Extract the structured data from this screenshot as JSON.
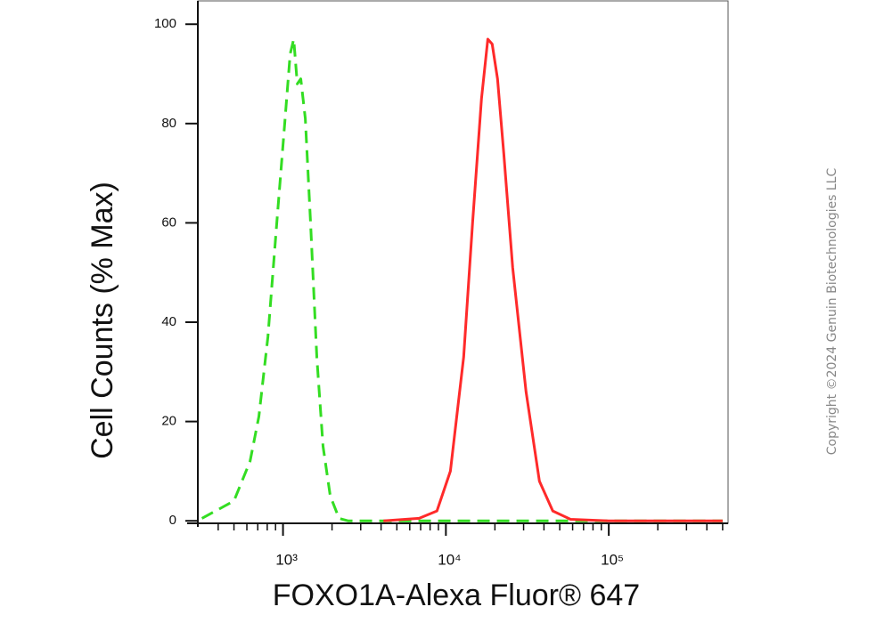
{
  "chart_data": {
    "type": "line",
    "xlabel": "FOXO1A-Alexa Fluor® 647",
    "ylabel": "Cell Counts (% Max)",
    "watermark": "Copyright ©2024 Genuin Biotechnologies LLC",
    "xscale": "log",
    "xlim": [
      300,
      540000
    ],
    "ylim": [
      -0.5,
      104.7
    ],
    "xticks": [
      {
        "value": 1000,
        "label": "10³"
      },
      {
        "value": 10000,
        "label": "10⁴"
      },
      {
        "value": 100000,
        "label": "10⁵"
      }
    ],
    "xminorticks": [
      400,
      500,
      600,
      700,
      800,
      900,
      2000,
      3000,
      4000,
      5000,
      6000,
      7000,
      8000,
      9000,
      20000,
      30000,
      40000,
      50000,
      60000,
      70000,
      80000,
      90000,
      200000,
      300000,
      400000,
      500000
    ],
    "yticks": [
      0,
      20,
      40,
      60,
      80,
      100
    ],
    "series": [
      {
        "color": "#33dd22",
        "style": "dashed",
        "x": [
          318,
          500,
          628,
          711,
          807,
          916,
          1013,
          1106,
          1163,
          1223,
          1286,
          1370,
          1477,
          1613,
          1762,
          1950,
          2210,
          2507,
          10000,
          100000,
          500000
        ],
        "values": [
          0.5,
          4,
          12,
          21,
          37,
          60,
          78,
          94,
          97,
          88,
          89,
          81,
          60,
          33,
          15,
          5,
          0.5,
          0,
          0,
          0,
          0
        ]
      },
      {
        "color": "#ff2a2a",
        "style": "solid",
        "x": [
          4140,
          6850,
          8810,
          10650,
          12850,
          14580,
          16550,
          18080,
          19240,
          20750,
          22650,
          25700,
          31050,
          37500,
          45300,
          58200,
          100000,
          500000
        ],
        "values": [
          0,
          0.5,
          2,
          10,
          33,
          60,
          85,
          97,
          96,
          89,
          74,
          51,
          26,
          8,
          2,
          0.3,
          0,
          0
        ]
      }
    ]
  }
}
